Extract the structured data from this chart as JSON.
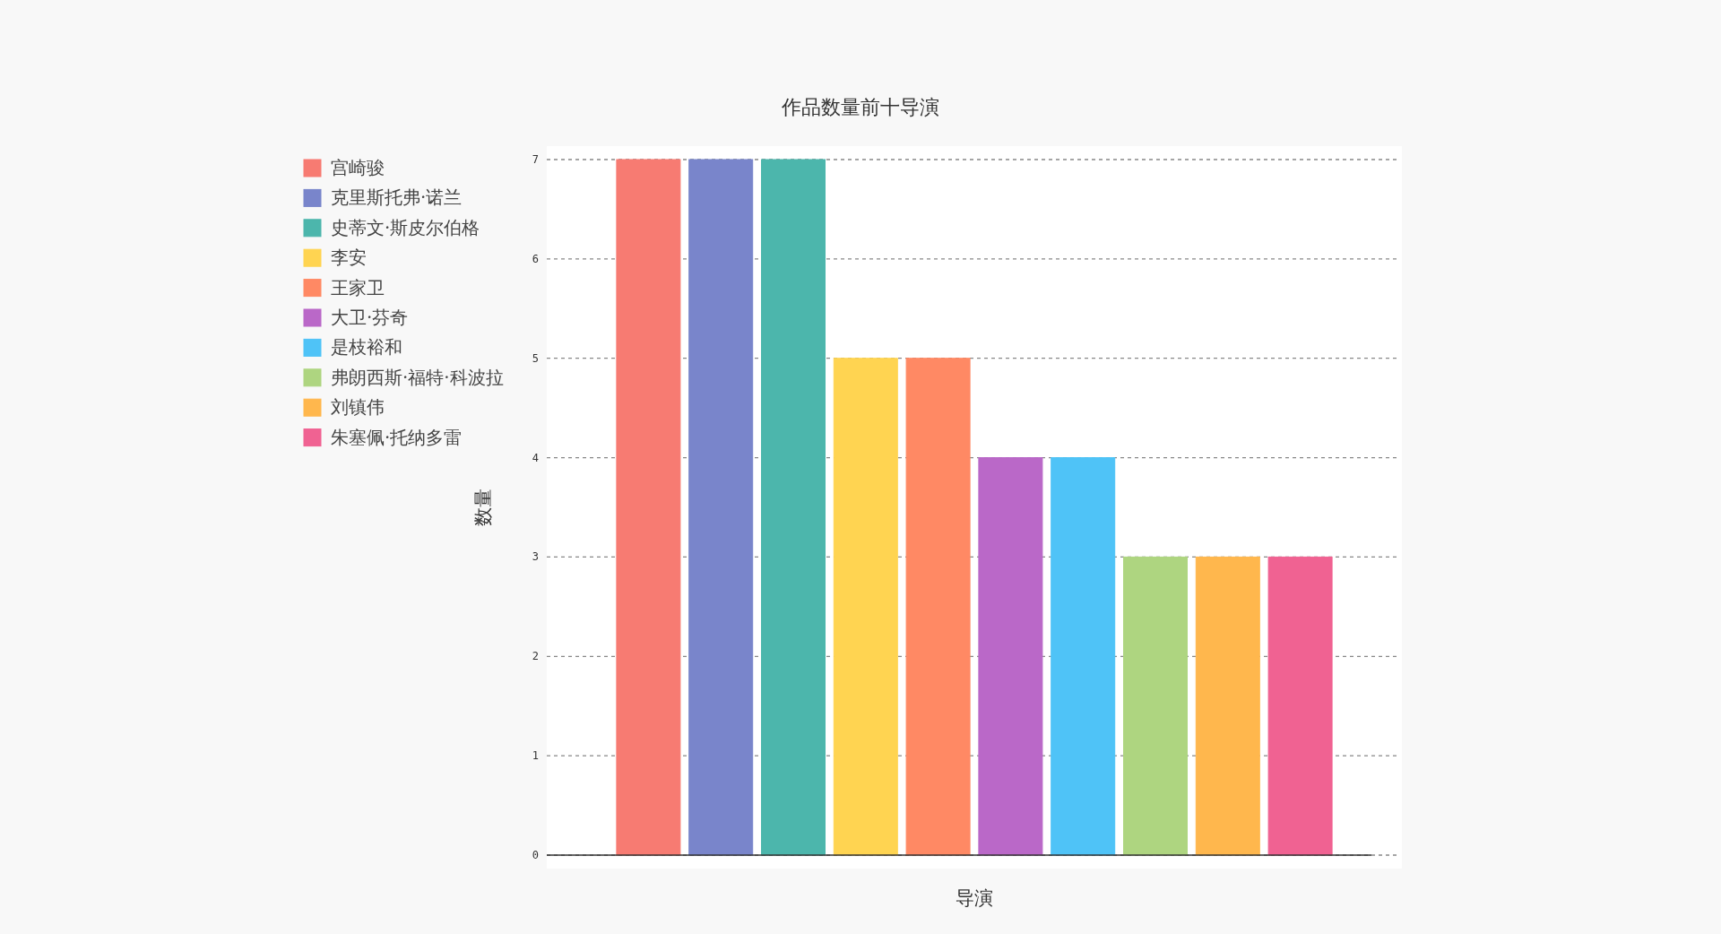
{
  "chart_data": {
    "type": "bar",
    "title": "作品数量前十导演",
    "xlabel": "导演",
    "ylabel": "数量",
    "categories": [
      null
    ],
    "series": [
      {
        "name": "宫崎骏",
        "color": "#f77b72",
        "values": [
          7
        ]
      },
      {
        "name": "克里斯托弗·诺兰",
        "color": "#7985cb",
        "values": [
          7
        ]
      },
      {
        "name": "史蒂文·斯皮尔伯格",
        "color": "#4cb6ac",
        "values": [
          7
        ]
      },
      {
        "name": "李安",
        "color": "#ffd451",
        "values": [
          5
        ]
      },
      {
        "name": "王家卫",
        "color": "#ff8964",
        "values": [
          5
        ]
      },
      {
        "name": "大卫·芬奇",
        "color": "#ba68c8",
        "values": [
          4
        ]
      },
      {
        "name": "是枝裕和",
        "color": "#4fc3f7",
        "values": [
          4
        ]
      },
      {
        "name": "弗朗西斯·福特·科波拉",
        "color": "#aed580",
        "values": [
          3
        ]
      },
      {
        "name": "刘镇伟",
        "color": "#ffb74d",
        "values": [
          3
        ]
      },
      {
        "name": "朱塞佩·托纳多雷",
        "color": "#f06292",
        "values": [
          3
        ]
      }
    ],
    "ylim": [
      0,
      7
    ],
    "yticks": [
      0,
      1,
      2,
      3,
      4,
      5,
      6,
      7
    ],
    "grid": "y",
    "legend": "left"
  }
}
